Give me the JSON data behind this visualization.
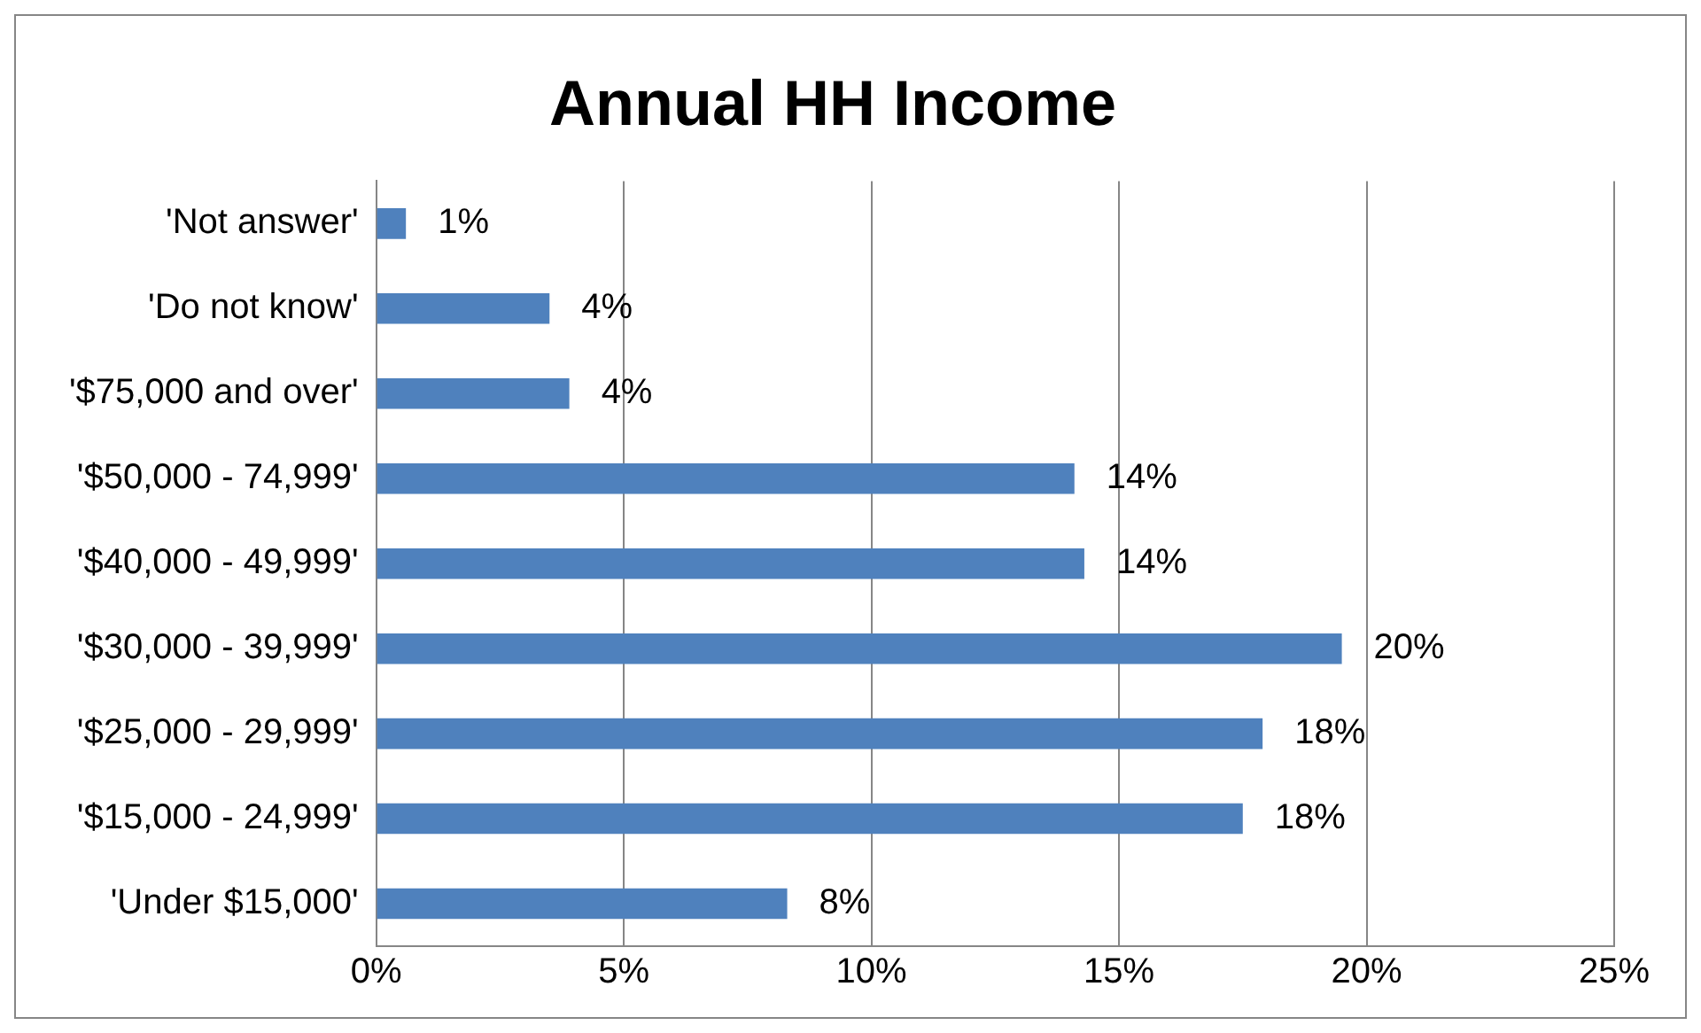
{
  "chart_data": {
    "type": "bar",
    "orientation": "horizontal",
    "title": "Annual HH Income",
    "categories": [
      "'Not answer'",
      "'Do not know'",
      "'$75,000 and over'",
      "'$50,000 - 74,999'",
      "'$40,000 - 49,999'",
      "'$30,000 - 39,999'",
      "'$25,000 - 29,999'",
      "'$15,000 - 24,999'",
      "'Under $15,000'"
    ],
    "values": [
      0.6,
      3.5,
      3.9,
      14.1,
      14.3,
      19.5,
      17.9,
      17.5,
      8.3
    ],
    "value_labels": [
      "1%",
      "4%",
      "4%",
      "14%",
      "14%",
      "20%",
      "18%",
      "18%",
      "8%"
    ],
    "color": "#4f81bd",
    "xlim": [
      0,
      25
    ],
    "xticks": [
      {
        "value": 0,
        "label": "0%"
      },
      {
        "value": 5,
        "label": "5%"
      },
      {
        "value": 10,
        "label": "10%"
      },
      {
        "value": 15,
        "label": "15%"
      },
      {
        "value": 20,
        "label": "20%"
      },
      {
        "value": 25,
        "label": "25%"
      }
    ],
    "grid": "x",
    "legend": false
  }
}
